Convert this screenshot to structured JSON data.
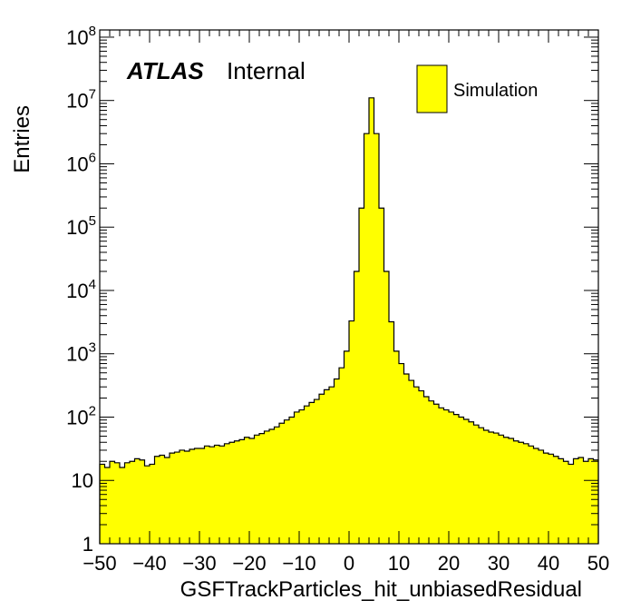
{
  "chart_data": {
    "type": "bar",
    "title": "",
    "xlabel": "GSFTrackParticles_hit_unbiasedResidual",
    "ylabel": "Entries",
    "x_range": [
      -50,
      50
    ],
    "y_range": [
      1,
      130000000
    ],
    "y_scale": "log",
    "bin_width": 1,
    "x_ticks": [
      -50,
      -40,
      -30,
      -20,
      -10,
      0,
      10,
      20,
      30,
      40,
      50
    ],
    "x_tick_labels": [
      "−50",
      "−40",
      "−30",
      "−20",
      "−10",
      "0",
      "10",
      "20",
      "30",
      "40",
      "50"
    ],
    "y_ticks": [
      {
        "value": 1,
        "base": "1",
        "exp": ""
      },
      {
        "value": 10,
        "base": "10",
        "exp": ""
      },
      {
        "value": 100,
        "base": "10",
        "exp": "2"
      },
      {
        "value": 1000,
        "base": "10",
        "exp": "3"
      },
      {
        "value": 10000,
        "base": "10",
        "exp": "4"
      },
      {
        "value": 100000,
        "base": "10",
        "exp": "5"
      },
      {
        "value": 1000000,
        "base": "10",
        "exp": "6"
      },
      {
        "value": 10000000,
        "base": "10",
        "exp": "7"
      },
      {
        "value": 100000000,
        "base": "10",
        "exp": "8"
      }
    ],
    "experiment_label": "ATLAS",
    "status_label": "Internal",
    "legend": {
      "position": "top-right",
      "entries": [
        {
          "name": "Simulation",
          "color": "#ffff00"
        }
      ]
    },
    "fill_color": "#ffff00",
    "line_color": "#000000",
    "grid": false,
    "series": [
      {
        "name": "Simulation",
        "bin_edges_start": -50,
        "values": [
          18,
          16,
          20,
          19,
          16,
          19,
          20,
          22,
          21,
          17,
          18,
          24,
          25,
          23,
          27,
          28,
          30,
          29,
          31,
          32,
          32,
          35,
          34,
          36,
          35,
          38,
          40,
          42,
          44,
          48,
          46,
          52,
          55,
          60,
          64,
          70,
          80,
          90,
          100,
          120,
          130,
          150,
          170,
          190,
          230,
          270,
          300,
          400,
          600,
          1100,
          3300,
          20000,
          200000,
          3000000,
          11000000,
          3000000,
          200000,
          20000,
          3200,
          1100,
          700,
          480,
          380,
          300,
          260,
          210,
          180,
          160,
          140,
          130,
          120,
          110,
          100,
          92,
          84,
          75,
          68,
          62,
          58,
          56,
          52,
          48,
          46,
          42,
          40,
          38,
          35,
          32,
          30,
          27,
          26,
          24,
          22,
          20,
          18,
          22,
          23,
          20,
          22,
          21
        ]
      }
    ]
  }
}
